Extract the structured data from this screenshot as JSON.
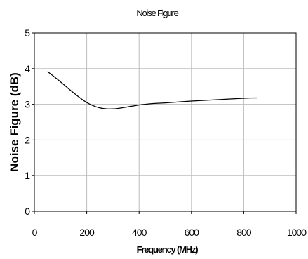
{
  "chart_data": {
    "type": "line",
    "title": "Noise Figure",
    "xlabel": "Frequency (MHz)",
    "ylabel": "Noise Figure (dB)",
    "xlim": [
      0,
      1000
    ],
    "ylim": [
      0,
      5
    ],
    "x_ticks": [
      "0",
      "200",
      "400",
      "600",
      "800",
      "1000"
    ],
    "y_ticks": [
      "0",
      "1",
      "2",
      "3",
      "4",
      "5"
    ],
    "grid": true,
    "legend": "none",
    "line_color": "#000000",
    "series": [
      {
        "x": [
          50,
          100,
          150,
          200,
          250,
          300,
          350,
          400,
          450,
          500,
          600,
          700,
          800,
          850
        ],
        "values": [
          3.92,
          3.63,
          3.32,
          3.05,
          2.9,
          2.87,
          2.92,
          2.98,
          3.02,
          3.04,
          3.09,
          3.13,
          3.17,
          3.18
        ]
      }
    ]
  }
}
